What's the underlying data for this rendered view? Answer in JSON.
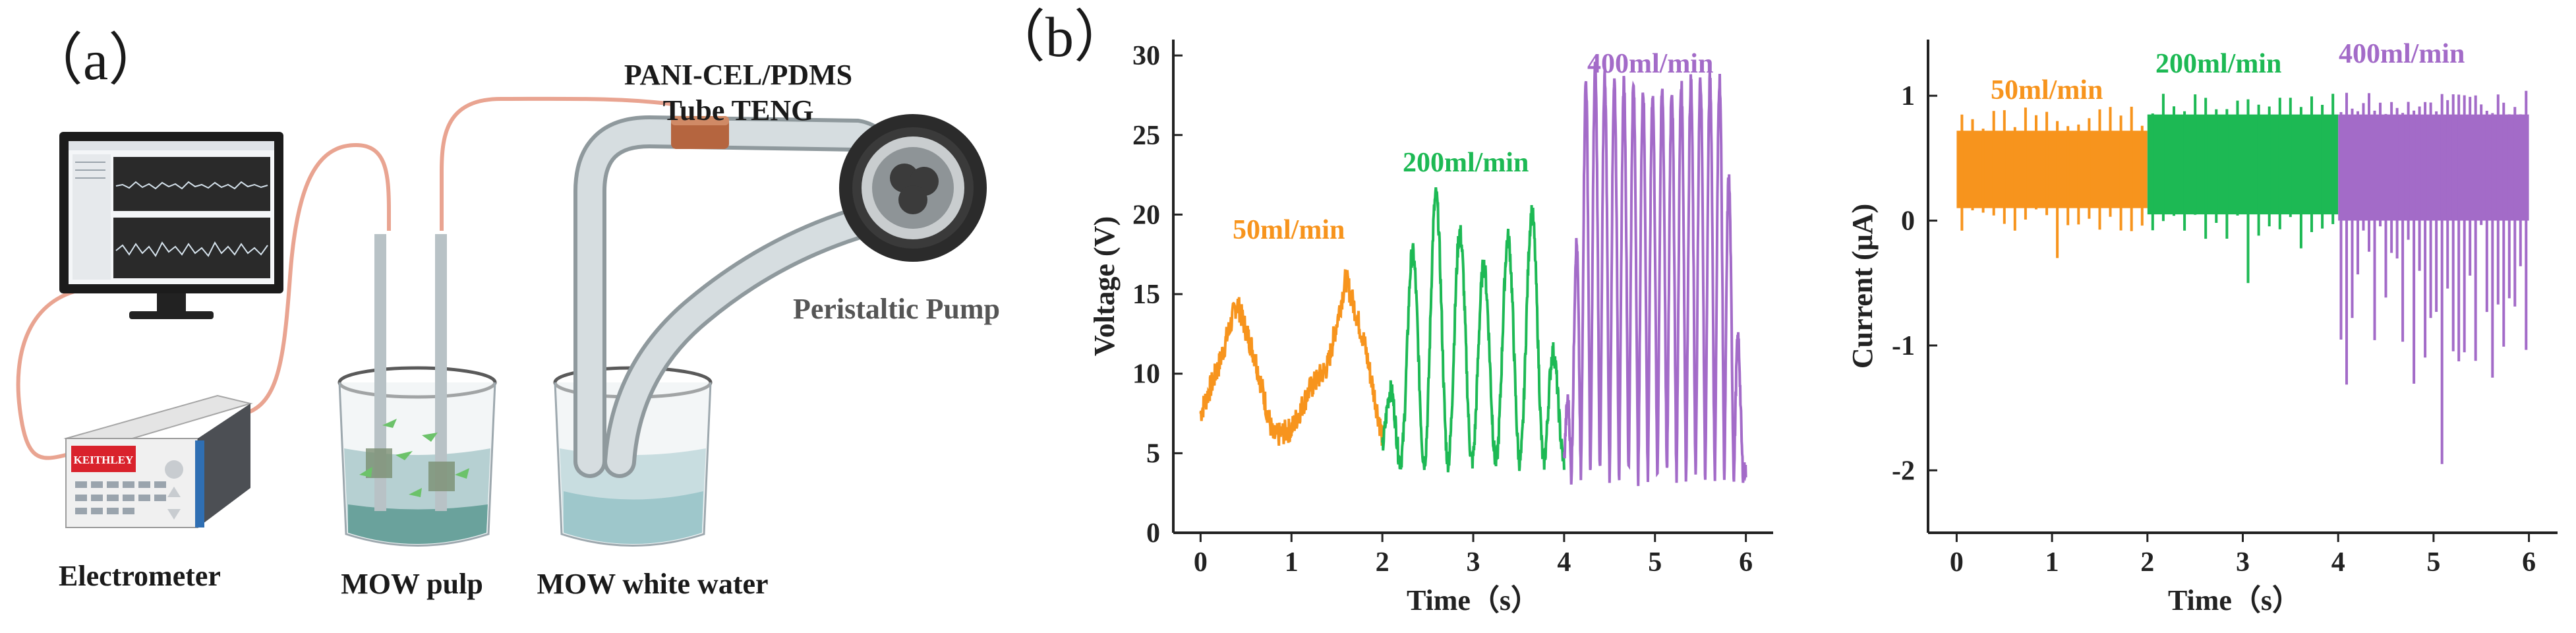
{
  "figure": {
    "panel_a_label": "（a）",
    "panel_b_label": "（b）"
  },
  "diagram": {
    "tube_label_line1": "PANI-CEL/PDMS",
    "tube_label_line2": "Tube TENG",
    "pump_label": "Peristaltic Pump",
    "electrometer_label": "Electrometer",
    "pulp_label": "MOW pulp",
    "white_water_label": "MOW white water",
    "instrument_brand": "KEITHLEY"
  },
  "colors": {
    "orange": "#f7941d",
    "green": "#1db954",
    "purple": "#a36bc8",
    "cable": "#e9a491",
    "tube_glass": "#c7cfd2",
    "tube_section": "#b5653f"
  },
  "chart_data": [
    {
      "type": "line",
      "name": "voltage",
      "xlabel": "Time（s）",
      "ylabel": "Voltage (V)",
      "xlim": [
        -0.3,
        6.3
      ],
      "ylim": [
        0,
        31
      ],
      "xticks": [
        "0",
        "1",
        "2",
        "3",
        "4",
        "5",
        "6"
      ],
      "yticks": [
        "0",
        "5",
        "10",
        "15",
        "20",
        "25",
        "30"
      ],
      "series": [
        {
          "name": "50ml/min",
          "color": "#f7941d",
          "x": [
            0.0,
            0.2,
            0.4,
            0.6,
            0.8,
            1.0,
            1.2,
            1.4,
            1.6,
            1.8,
            2.0
          ],
          "y": [
            7.5,
            10.5,
            14.5,
            11.0,
            6.0,
            6.5,
            9.0,
            10.5,
            16.0,
            12.0,
            6.0
          ]
        },
        {
          "name": "200ml/min",
          "color": "#1db954",
          "x": [
            2.0,
            2.3,
            2.55,
            2.9,
            3.15,
            3.5,
            3.75,
            4.0
          ],
          "y": [
            6.0,
            17.0,
            21.5,
            18.5,
            16.5,
            19.5,
            20.5,
            4.5
          ]
        },
        {
          "name": "400ml/min",
          "color": "#a36bc8",
          "x": [
            4.0,
            4.25,
            4.5,
            4.75,
            5.0,
            5.25,
            5.5,
            5.75,
            6.0
          ],
          "y": [
            5.0,
            29.5,
            28.5,
            28.0,
            27.5,
            28.0,
            28.5,
            28.5,
            4.0
          ]
        }
      ]
    },
    {
      "type": "line",
      "name": "current",
      "xlabel": "Time（s）",
      "ylabel": "Current (μA)",
      "xlim": [
        -0.3,
        6.3
      ],
      "ylim": [
        -2.5,
        1.45
      ],
      "xticks": [
        "0",
        "1",
        "2",
        "3",
        "4",
        "5",
        "6"
      ],
      "yticks": [
        "-2",
        "-1",
        "0",
        "1"
      ],
      "series": [
        {
          "name": "50ml/min",
          "color": "#f7941d",
          "x": [
            0.0,
            2.0
          ],
          "y_top": [
            0.72,
            0.72
          ],
          "y_bottom": [
            0.1,
            0.1
          ],
          "y_min": -0.3
        },
        {
          "name": "200ml/min",
          "color": "#1db954",
          "x": [
            2.0,
            4.0
          ],
          "y_top": [
            0.85,
            0.85
          ],
          "y_bottom": [
            0.05,
            0.05
          ],
          "y_min": -0.5
        },
        {
          "name": "400ml/min",
          "color": "#a36bc8",
          "x": [
            4.0,
            6.0
          ],
          "y_top": [
            0.85,
            0.85
          ],
          "y_bottom": [
            0.0,
            0.0
          ],
          "y_min": -1.95
        }
      ]
    }
  ]
}
